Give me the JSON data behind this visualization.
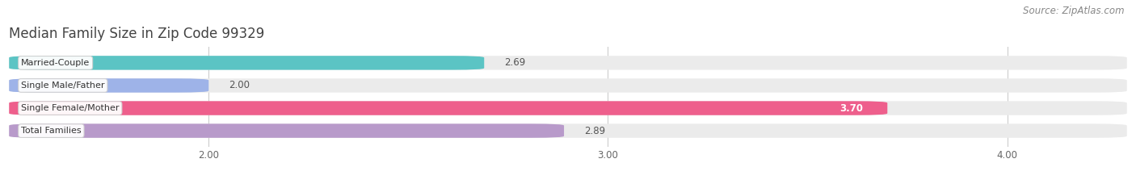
{
  "title": "Median Family Size in Zip Code 99329",
  "source": "Source: ZipAtlas.com",
  "categories": [
    "Married-Couple",
    "Single Male/Father",
    "Single Female/Mother",
    "Total Families"
  ],
  "values": [
    2.69,
    2.0,
    3.7,
    2.89
  ],
  "bar_colors": [
    "#5bc4c4",
    "#9eb3e8",
    "#ee5f8c",
    "#b89aca"
  ],
  "xmin": 1.5,
  "xmax": 4.3,
  "xticks": [
    2.0,
    3.0,
    4.0
  ],
  "xtick_labels": [
    "2.00",
    "3.00",
    "4.00"
  ],
  "bar_height": 0.62,
  "background_color": "#ffffff",
  "bar_bg_color": "#ebebeb",
  "title_fontsize": 12,
  "label_fontsize": 8,
  "tick_fontsize": 8.5,
  "source_fontsize": 8.5,
  "value_threshold_inside": 3.5
}
